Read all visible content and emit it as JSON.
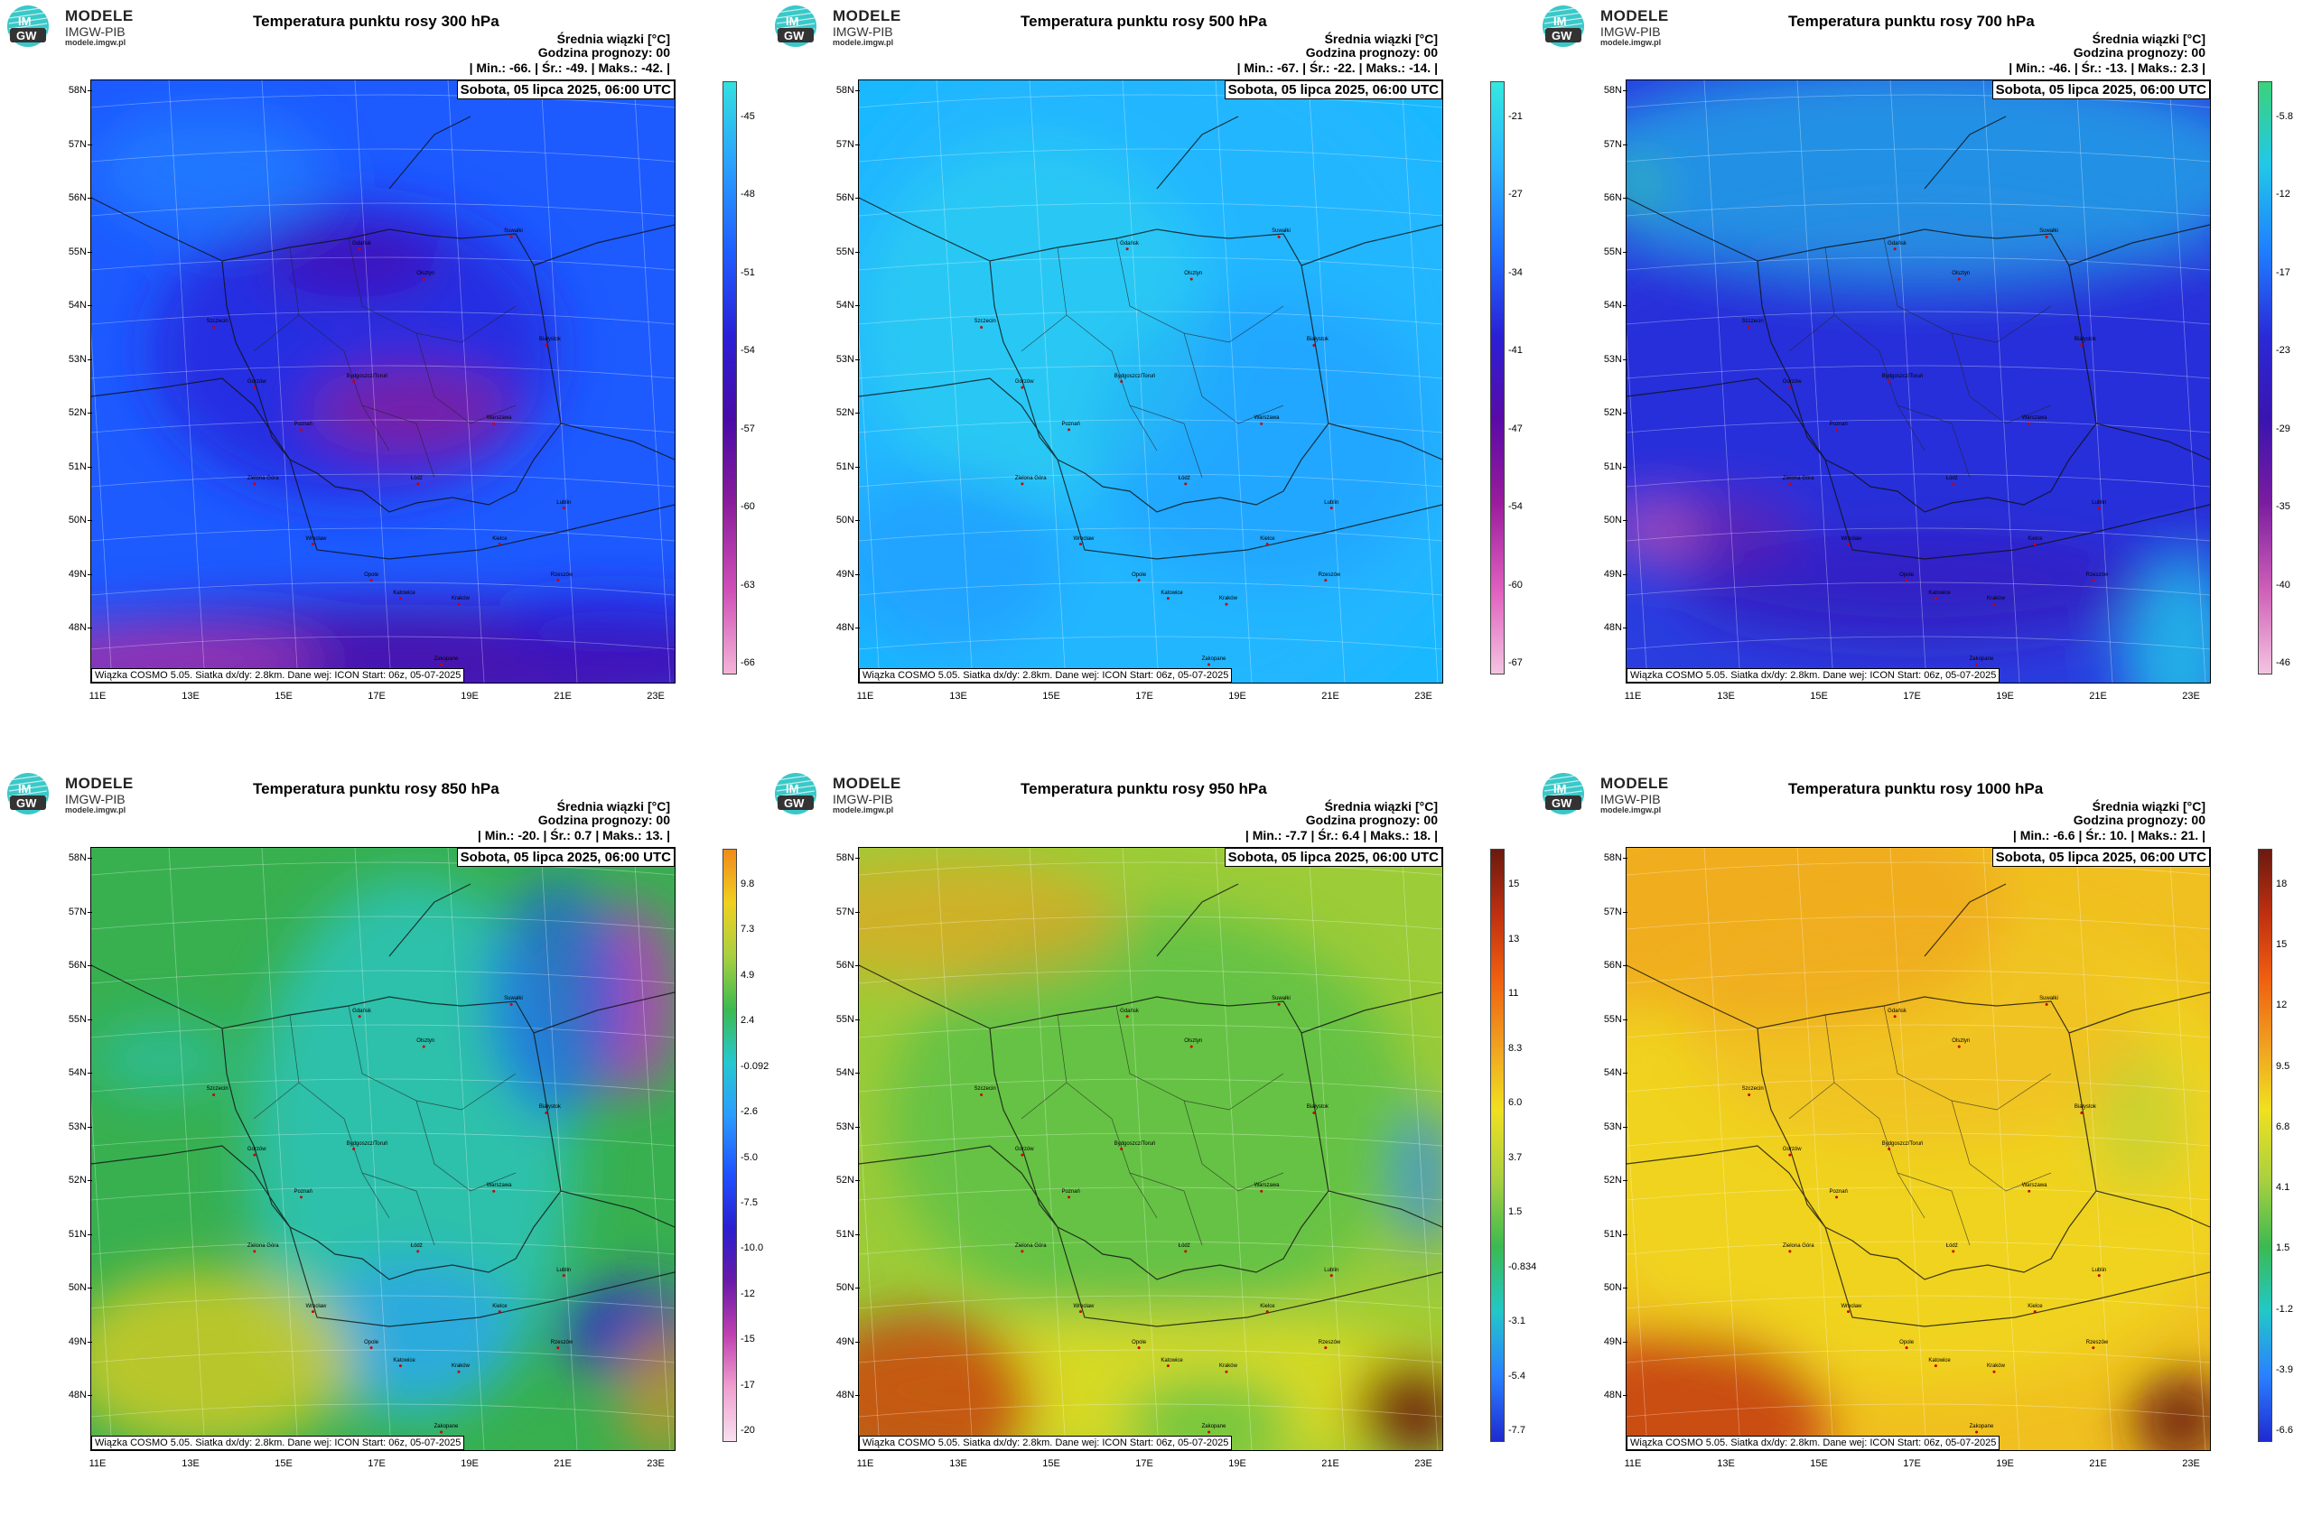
{
  "logo": {
    "line1": "MODELE",
    "line2": "IMGW-PIB",
    "line3": "modele.imgw.pl",
    "mark1": "IM",
    "mark2": "GW"
  },
  "common": {
    "info_line1": "Średnia wiązki [°C]",
    "info_line2": "Godzina prognozy: 00",
    "date": "Sobota, 05 lipca 2025, 06:00 UTC",
    "credit": "Wiązka COSMO 5.05. Siatka dx/dy: 2.8km. Dane wej: ICON Start: 06z, 05-07-2025",
    "lat_labels": [
      "58N",
      "57N",
      "56N",
      "55N",
      "54N",
      "53N",
      "52N",
      "51N",
      "50N",
      "49N",
      "48N"
    ],
    "lon_labels": [
      "11E",
      "13E",
      "15E",
      "17E",
      "19E",
      "21E",
      "23E"
    ],
    "cities": [
      "Gdańsk",
      "Olsztyn",
      "Suwałki",
      "Szczecin",
      "Białystok",
      "Bydgoszcz/Toruń",
      "Gorzów",
      "Poznań",
      "Warszawa",
      "Zielona Góra",
      "Łódź",
      "Lublin",
      "Wrocław",
      "Kielce",
      "Opole",
      "Katowice",
      "Kraków",
      "Rzeszów",
      "Zakopane"
    ]
  },
  "panels": [
    {
      "title": "Temperatura punktu rosy 300 hPa",
      "min_label": "| Min.:",
      "min": "-66.",
      "avg_label": "| Śr.:",
      "avg": "-49.",
      "max_label": "| Maks.:",
      "max": "-42. |",
      "colorbar": [
        "-45",
        "-48",
        "-51",
        "-54",
        "-57",
        "-60",
        "-63",
        "-66"
      ],
      "palette": [
        "#33e0e0",
        "#2aa0ff",
        "#1f5cff",
        "#2a1fd6",
        "#4a0aa8",
        "#8a1c9c",
        "#d050b8",
        "#f4b4d8"
      ],
      "bg": "#1d5bff"
    },
    {
      "title": "Temperatura punktu rosy 500 hPa",
      "min_label": "| Min.:",
      "min": "-67.",
      "avg_label": "| Śr.:",
      "avg": "-22.",
      "max_label": "| Maks.:",
      "max": "-14. |",
      "colorbar": [
        "-21",
        "-27",
        "-34",
        "-41",
        "-47",
        "-54",
        "-60",
        "-67"
      ],
      "palette": [
        "#33e8e0",
        "#2ab6ff",
        "#1f6cff",
        "#2a1fd6",
        "#5a0aa8",
        "#9a1c9c",
        "#e060c0",
        "#f4c4e0"
      ],
      "bg": "#1ab8ff"
    },
    {
      "title": "Temperatura punktu rosy 700 hPa",
      "min_label": "| Min.:",
      "min": "-46.",
      "avg_label": "| Śr.:",
      "avg": "-13.",
      "max_label": "| Maks.:",
      "max": "2.3 |",
      "colorbar": [
        "-5.8",
        "-12",
        "-17",
        "-23",
        "-29",
        "-35",
        "-40",
        "-46"
      ],
      "palette": [
        "#3bd27a",
        "#22c8e8",
        "#1f7cff",
        "#2a2ad6",
        "#3a14b0",
        "#7a1ca0",
        "#d060b8",
        "#f4c4e0"
      ],
      "bg": "#2a3ee0"
    },
    {
      "title": "Temperatura punktu rosy 850 hPa",
      "min_label": "| Min.:",
      "min": "-20.",
      "avg_label": "| Śr.:",
      "avg": "0.7",
      "max_label": "| Maks.:",
      "max": "13. |",
      "colorbar": [
        "9.8",
        "7.3",
        "4.9",
        "2.4",
        "-0.092",
        "-2.6",
        "-5.0",
        "-7.5",
        "-10.0",
        "-12",
        "-15",
        "-17",
        "-20"
      ],
      "palette": [
        "#f08a1a",
        "#f0d020",
        "#a8d040",
        "#3cba50",
        "#26c8d0",
        "#2a9cff",
        "#1f50ff",
        "#2a1fd0",
        "#6a1aa8",
        "#c040b0",
        "#f0a0d0",
        "#f8e0f0"
      ],
      "bg": "#38b050"
    },
    {
      "title": "Temperatura punktu rosy 950 hPa",
      "min_label": "| Min.:",
      "min": "-7.7",
      "avg_label": "| Śr.:",
      "avg": "6.4",
      "max_label": "| Maks.:",
      "max": "18. |",
      "colorbar": [
        "15",
        "13",
        "11",
        "8.3",
        "6.0",
        "3.7",
        "1.5",
        "-0.834",
        "-3.1",
        "-5.4",
        "-7.7"
      ],
      "palette": [
        "#6a1a10",
        "#c03010",
        "#f06010",
        "#f0a020",
        "#f0e020",
        "#a8d040",
        "#3cba50",
        "#22c8c8",
        "#2a80ff",
        "#1f2ad0"
      ],
      "bg": "#9ccc38"
    },
    {
      "title": "Temperatura punktu rosy 1000 hPa",
      "min_label": "| Min.:",
      "min": "-6.6",
      "avg_label": "| Śr.:",
      "avg": "10.",
      "max_label": "| Maks.:",
      "max": "21. |",
      "colorbar": [
        "18",
        "15",
        "12",
        "9.5",
        "6.8",
        "4.1",
        "1.5",
        "-1.2",
        "-3.9",
        "-6.6"
      ],
      "palette": [
        "#6a1a10",
        "#c03010",
        "#f06010",
        "#f0a020",
        "#f0e020",
        "#a8d040",
        "#3cba50",
        "#22c8c8",
        "#2a80ff",
        "#1f2ad0"
      ],
      "bg": "#f0c020"
    }
  ]
}
